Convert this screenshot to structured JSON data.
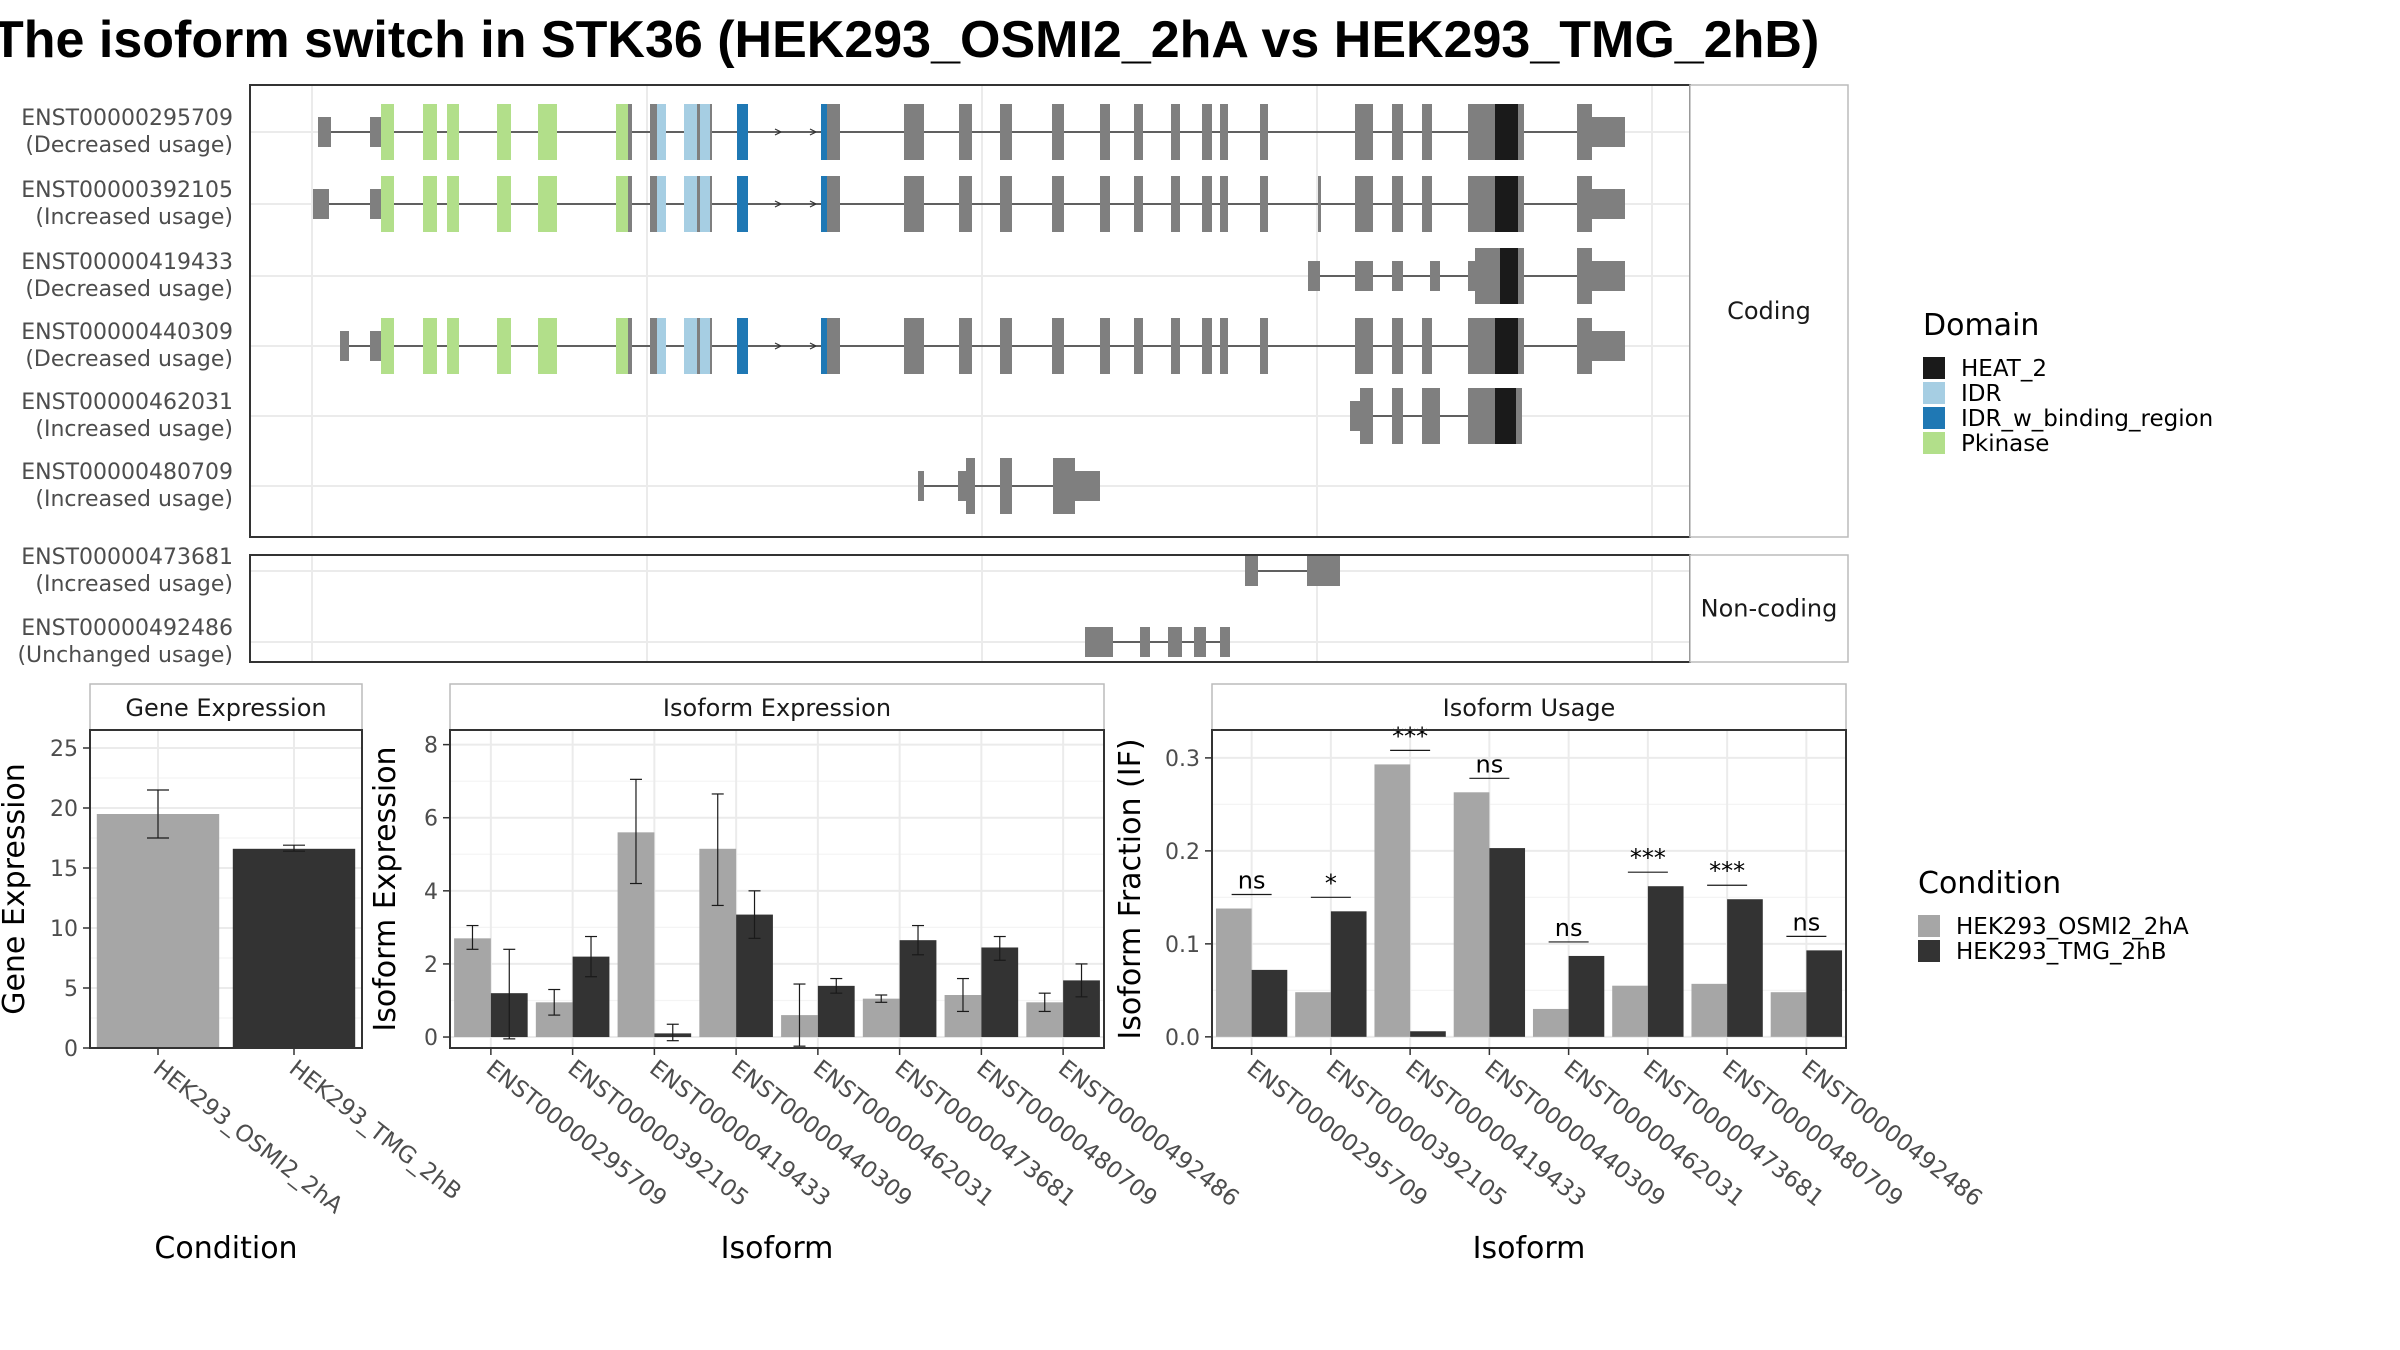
{
  "title": "The isoform switch in STK36 (HEK293_OSMI2_2hA vs HEK293_TMG_2hB)",
  "colors": {
    "HEAT_2": "#1a1a1a",
    "IDR": "#a6cee3",
    "IDR_w_binding_region": "#1f78b4",
    "Pkinase": "#b2df8a",
    "exon": "#7f7f7f",
    "cond_a": "#a6a6a6",
    "cond_b": "#333333"
  },
  "structure": {
    "facets": [
      {
        "label": "Coding",
        "isoforms": [
          {
            "id": "ENST00000295709",
            "usage": "(Decreased usage)"
          },
          {
            "id": "ENST00000392105",
            "usage": "(Increased usage)"
          },
          {
            "id": "ENST00000419433",
            "usage": "(Decreased usage)"
          },
          {
            "id": "ENST00000440309",
            "usage": "(Decreased usage)"
          },
          {
            "id": "ENST00000462031",
            "usage": "(Increased usage)"
          },
          {
            "id": "ENST00000480709",
            "usage": "(Increased usage)"
          }
        ]
      },
      {
        "label": "Non-coding",
        "isoforms": [
          {
            "id": "ENST00000473681",
            "usage": "(Increased usage)"
          },
          {
            "id": "ENST00000492486",
            "usage": "(Unchanged usage)"
          }
        ]
      }
    ]
  },
  "legend_domain": {
    "title": "Domain",
    "entries": [
      {
        "label": "HEAT_2",
        "color": "#1a1a1a"
      },
      {
        "label": "IDR",
        "color": "#a6cee3"
      },
      {
        "label": "IDR_w_binding_region",
        "color": "#1f78b4"
      },
      {
        "label": "Pkinase",
        "color": "#b2df8a"
      }
    ]
  },
  "legend_condition": {
    "title": "Condition",
    "entries": [
      {
        "label": "HEK293_OSMI2_2hA",
        "color": "#a6a6a6"
      },
      {
        "label": "HEK293_TMG_2hB",
        "color": "#333333"
      }
    ]
  },
  "chart_data": [
    {
      "type": "bar",
      "title": "Gene Expression",
      "xlabel": "Condition",
      "ylabel": "Gene Expression",
      "ylim": [
        0,
        26.5
      ],
      "yticks": [
        0,
        5,
        10,
        15,
        20,
        25
      ],
      "categories": [
        "HEK293_OSMI2_2hA",
        "HEK293_TMG_2hB"
      ],
      "values": [
        19.5,
        16.6
      ],
      "errors": [
        [
          17.5,
          21.5
        ],
        [
          16.4,
          16.9
        ]
      ]
    },
    {
      "type": "bar",
      "title": "Isoform Expression",
      "xlabel": "Isoform",
      "ylabel": "Isoform Expression",
      "ylim": [
        -0.3,
        8.4
      ],
      "yticks": [
        0,
        2,
        4,
        6,
        8
      ],
      "categories": [
        "ENST00000295709",
        "ENST00000392105",
        "ENST00000419433",
        "ENST00000440309",
        "ENST00000462031",
        "ENST00000473681",
        "ENST00000480709",
        "ENST00000492486"
      ],
      "series": [
        {
          "name": "HEK293_OSMI2_2hA",
          "values": [
            2.7,
            0.95,
            5.6,
            5.15,
            0.6,
            1.05,
            1.15,
            0.95
          ],
          "errors": [
            [
              2.4,
              3.05
            ],
            [
              0.6,
              1.3
            ],
            [
              4.2,
              7.05
            ],
            [
              3.6,
              6.65
            ],
            [
              -0.25,
              1.45
            ],
            [
              0.95,
              1.15
            ],
            [
              0.7,
              1.6
            ],
            [
              0.7,
              1.2
            ]
          ]
        },
        {
          "name": "HEK293_TMG_2hB",
          "values": [
            1.2,
            2.2,
            0.1,
            3.35,
            1.4,
            2.65,
            2.45,
            1.55
          ],
          "errors": [
            [
              -0.05,
              2.4
            ],
            [
              1.65,
              2.75
            ],
            [
              -0.1,
              0.35
            ],
            [
              2.7,
              4.0
            ],
            [
              1.2,
              1.6
            ],
            [
              2.25,
              3.05
            ],
            [
              2.1,
              2.75
            ],
            [
              1.1,
              2.0
            ]
          ]
        }
      ]
    },
    {
      "type": "bar",
      "title": "Isoform Usage",
      "xlabel": "Isoform",
      "ylabel": "Isoform Fraction (IF)",
      "ylim": [
        -0.012,
        0.33
      ],
      "yticks": [
        0.0,
        0.1,
        0.2,
        0.3
      ],
      "ytick_labels": [
        "0.0",
        "0.1",
        "0.2",
        "0.3"
      ],
      "categories": [
        "ENST00000295709",
        "ENST00000392105",
        "ENST00000419433",
        "ENST00000440309",
        "ENST00000462031",
        "ENST00000473681",
        "ENST00000480709",
        "ENST00000492486"
      ],
      "series": [
        {
          "name": "HEK293_OSMI2_2hA",
          "values": [
            0.138,
            0.048,
            0.293,
            0.263,
            0.03,
            0.055,
            0.057,
            0.048
          ]
        },
        {
          "name": "HEK293_TMG_2hB",
          "values": [
            0.072,
            0.135,
            0.006,
            0.203,
            0.087,
            0.162,
            0.148,
            0.093
          ]
        }
      ],
      "significance": [
        "ns",
        "*",
        "***",
        "ns",
        "ns",
        "***",
        "***",
        "ns"
      ]
    }
  ]
}
